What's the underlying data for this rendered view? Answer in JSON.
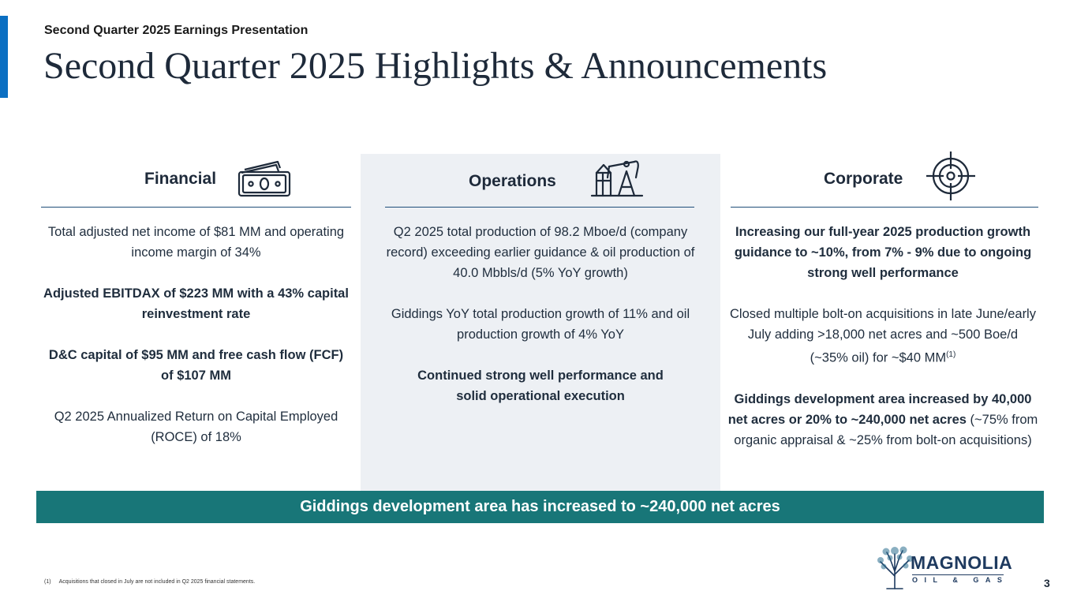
{
  "header": {
    "kicker": "Second Quarter 2025 Earnings Presentation",
    "title": "Second Quarter 2025 Highlights & Announcements"
  },
  "columns": {
    "financial": {
      "title": "Financial",
      "icon": "cash-icon",
      "p1": "Total adjusted net income of $81 MM and operating income margin of 34%",
      "p2": "Adjusted EBITDAX of $223 MM with a 43% capital reinvestment rate",
      "p3": "D&C capital of $95 MM and free cash flow (FCF) of $107 MM",
      "p4": "Q2 2025 Annualized Return on Capital Employed (ROCE) of 18%"
    },
    "operations": {
      "title": "Operations",
      "icon": "oil-pump-icon",
      "p1": "Q2 2025 total production of 98.2 Mboe/d (company record) exceeding earlier guidance & oil production of 40.0 Mbbls/d (5% YoY growth)",
      "p2": "Giddings YoY total production growth of 11% and oil production growth of 4% YoY",
      "p3": "Continued strong well performance and solid operational execution"
    },
    "corporate": {
      "title": "Corporate",
      "icon": "target-icon",
      "p1": "Increasing our full-year 2025 production growth guidance to ~10%, from 7% - 9% due to ongoing strong well performance",
      "p2": "Closed multiple bolt-on acquisitions in late June/early July adding >18,000 net acres and ~500 Boe/d (~35% oil) for ~$40 MM",
      "p2_sup": "(1)",
      "p3_bold": "Giddings development area increased by 40,000 net acres or 20% to ~240,000 net acres",
      "p3_rest": " (~75% from organic appraisal & ~25% from bolt-on acquisitions)"
    }
  },
  "banner": "Giddings development area has increased to ~240,000 net acres",
  "footnote": {
    "number": "(1)",
    "text": "Acquisitions that closed in July are not included in Q2 2025 financial statements."
  },
  "logo": {
    "name": "MAGNOLIA",
    "subtitle": "OIL & GAS"
  },
  "page_number": "3",
  "colors": {
    "accent": "#0b6fc2",
    "banner": "#187678",
    "navy": "#1e2a3a",
    "panel": "#edf0f4"
  }
}
